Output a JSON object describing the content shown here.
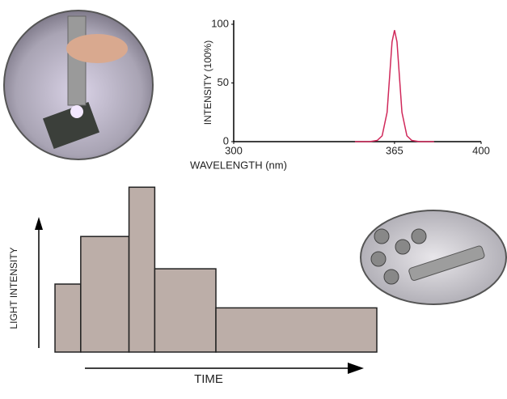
{
  "chart_data": [
    {
      "type": "line",
      "x_label": "WAVELENGTH (nm)",
      "y_label": "INTENSITY (100%)",
      "x": [
        349,
        355,
        358,
        360,
        362,
        363,
        364,
        365,
        366,
        367,
        368,
        370,
        372,
        375,
        381
      ],
      "values": [
        0,
        0,
        1,
        5,
        25,
        55,
        85,
        95,
        85,
        55,
        25,
        5,
        1,
        0,
        0
      ],
      "color": "#d0285a",
      "xlim": [
        300,
        400
      ],
      "xticks": [
        300,
        365,
        400
      ],
      "ylim": [
        0,
        100
      ],
      "yticks": [
        0,
        50,
        100
      ]
    },
    {
      "type": "histogram",
      "x_label": "TIME",
      "y_label": "LIGHT INTENSITY",
      "bins": [
        0,
        8,
        23,
        31,
        50,
        100
      ],
      "values": [
        40,
        68,
        97,
        49,
        26
      ],
      "color": "#bcaea8",
      "xlim": [
        0,
        100
      ],
      "ylim": [
        0,
        100
      ]
    }
  ]
}
